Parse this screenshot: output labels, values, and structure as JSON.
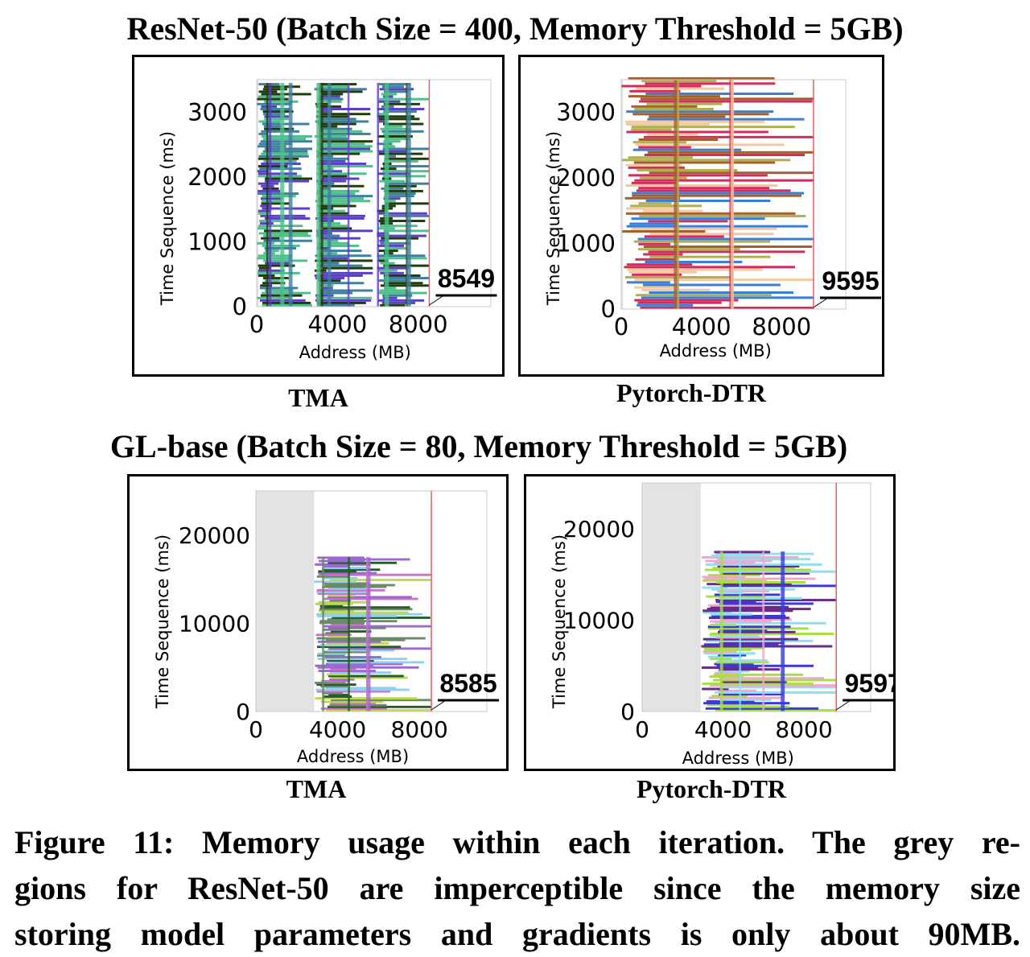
{
  "figure": {
    "row_titles": [
      "ResNet-50 (Batch Size = 400, Memory Threshold = 5GB)",
      "GL-base (Batch Size = 80, Memory Threshold = 5GB)"
    ],
    "caption_lines": [
      "Figure 11: Memory usage within each iteration. The grey re-",
      "gions for ResNet-50 are imperceptible since the memory size",
      "storing model parameters and gradients is only about 90MB."
    ]
  },
  "chart_data": [
    {
      "type": "scatter",
      "panel_label": "TMA",
      "group": "ResNet-50",
      "xlabel": "Address (MB)",
      "ylabel": "Time Sequence (ms)",
      "xticks": [
        "0",
        "4000",
        "8000"
      ],
      "yticks": [
        "0",
        "1000",
        "2000",
        "3000"
      ],
      "xlim": [
        0,
        11600
      ],
      "ylim": [
        0,
        3500
      ],
      "peak_label": "8549",
      "peak_x": 8549,
      "colors": [
        "#5b3fc4",
        "#1f3d0c",
        "#4fbf8c",
        "#3f7f9f"
      ],
      "grey_region_end": 90,
      "used_range": [
        0,
        8549
      ],
      "active_ranges": [
        [
          0,
          2750
        ],
        [
          2850,
          5750
        ],
        [
          5950,
          8549
        ]
      ],
      "block_time": [
        0,
        3450
      ]
    },
    {
      "type": "scatter",
      "panel_label": "Pytorch-DTR",
      "group": "ResNet-50",
      "xlabel": "Address (MB)",
      "ylabel": "Time Sequence (ms)",
      "xticks": [
        "0",
        "4000",
        "8000"
      ],
      "yticks": [
        "0",
        "1000",
        "2000",
        "3000"
      ],
      "xlim": [
        0,
        11200
      ],
      "ylim": [
        0,
        3500
      ],
      "peak_label": "9595",
      "peak_x": 9595,
      "colors": [
        "#a2602f",
        "#d42b5e",
        "#f5c9a0",
        "#b0b050",
        "#3a7fd6"
      ],
      "grey_region_end": 90,
      "used_range": [
        0,
        9595
      ],
      "active_ranges": [
        [
          0,
          9595
        ]
      ],
      "block_time": [
        0,
        3500
      ]
    },
    {
      "type": "scatter",
      "panel_label": "TMA",
      "group": "GL-base",
      "xlabel": "Address (MB)",
      "ylabel": "Time Sequence (ms)",
      "xticks": [
        "0",
        "4000",
        "8000"
      ],
      "yticks": [
        "0",
        "10000",
        "20000"
      ],
      "xlim": [
        0,
        11300
      ],
      "ylim": [
        0,
        25000
      ],
      "peak_label": "8585",
      "peak_x": 8585,
      "colors": [
        "#6a8a6a",
        "#9a6ad0",
        "#d070c8",
        "#2a5a2a",
        "#8fd0f0",
        "#c0d850"
      ],
      "grey_region_end": 2850,
      "used_range": [
        2850,
        8585
      ],
      "active_ranges": [
        [
          2850,
          8585
        ]
      ],
      "block_time": [
        0,
        17500
      ]
    },
    {
      "type": "scatter",
      "panel_label": "Pytorch-DTR",
      "group": "GL-base",
      "xlabel": "Address (MB)",
      "ylabel": "Time Sequence (ms)",
      "xticks": [
        "0",
        "4000",
        "8000"
      ],
      "yticks": [
        "0",
        "10000",
        "20000"
      ],
      "xlim": [
        0,
        11300
      ],
      "ylim": [
        0,
        25000
      ],
      "peak_label": "9597",
      "peak_x": 9597,
      "colors": [
        "#3a3ad8",
        "#8fe0f0",
        "#f0a8d0",
        "#a8e040",
        "#6a2a8a"
      ],
      "grey_region_end": 2900,
      "used_range": [
        2900,
        9597
      ],
      "active_ranges": [
        [
          2900,
          9597
        ]
      ],
      "block_time": [
        0,
        17500
      ]
    }
  ]
}
